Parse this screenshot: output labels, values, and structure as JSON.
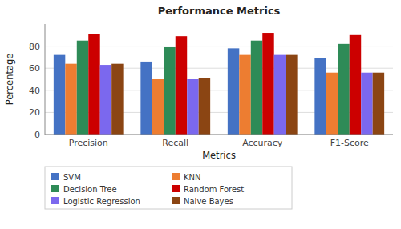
{
  "chart_data": {
    "type": "bar",
    "title": "Performance Metrics",
    "xlabel": "Metrics",
    "ylabel": "Percentage",
    "categories": [
      "Precision",
      "Recall",
      "Accuracy",
      "F1-Score"
    ],
    "series": [
      {
        "name": "SVM",
        "color": "#4472C4",
        "values": [
          72,
          66,
          78,
          69
        ]
      },
      {
        "name": "KNN",
        "color": "#ED7D31",
        "values": [
          64,
          50,
          72,
          56
        ]
      },
      {
        "name": "Decision Tree",
        "color": "#2E8B57",
        "values": [
          85,
          79,
          85,
          82
        ]
      },
      {
        "name": "Random Forest",
        "color": "#CC0000",
        "values": [
          91,
          89,
          92,
          90
        ]
      },
      {
        "name": "Logistic Regression",
        "color": "#7B68EE",
        "values": [
          63,
          50,
          72,
          56
        ]
      },
      {
        "name": "Naive Bayes",
        "color": "#8B4513",
        "values": [
          64,
          51,
          72,
          56
        ]
      }
    ],
    "ylim": [
      0,
      100
    ],
    "yticks": [
      0,
      20,
      40,
      60,
      80
    ],
    "grid": true,
    "legend": "bottom"
  }
}
